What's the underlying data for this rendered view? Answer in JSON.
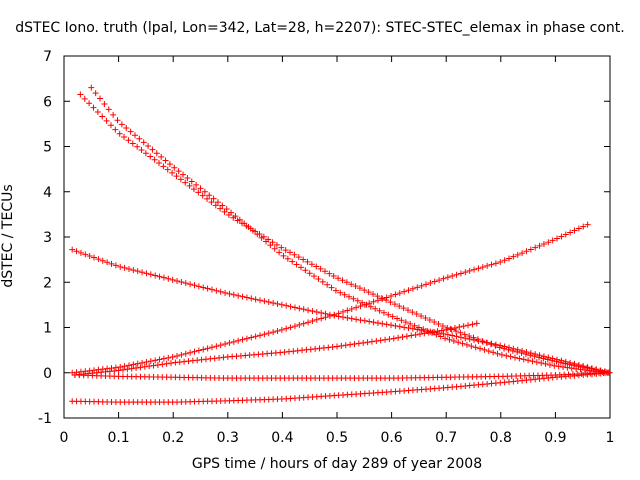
{
  "chart_data": {
    "type": "scatter",
    "title": "dSTEC Iono. truth (lpal, Lon=342, Lat=28, h=2207): STEC-STEC_elemax in phase cont.",
    "xlabel": "GPS time / hours of day 289 of year 2008",
    "ylabel": "dSTEC  / TECUs",
    "xlim": [
      0,
      1
    ],
    "ylim": [
      -1,
      7
    ],
    "xticks": [
      "0",
      "0.1",
      "0.2",
      "0.3",
      "0.4",
      "0.5",
      "0.6",
      "0.7",
      "0.8",
      "0.9",
      "1"
    ],
    "yticks": [
      "-1",
      "0",
      "1",
      "2",
      "3",
      "4",
      "5",
      "6",
      "7"
    ],
    "grid": false,
    "legend": "none",
    "marker": "+",
    "color": "#ff0000",
    "series": [
      {
        "x": [
          0.03,
          0.1,
          0.2,
          0.3,
          0.4,
          0.5,
          0.6,
          0.7,
          0.8,
          0.9,
          0.96,
          1.0
        ],
        "y": [
          6.15,
          5.3,
          4.4,
          3.5,
          2.75,
          2.1,
          1.55,
          1.0,
          0.55,
          0.25,
          0.1,
          0.0
        ]
      },
      {
        "x": [
          0.05,
          0.1,
          0.2,
          0.3,
          0.4,
          0.5,
          0.6,
          0.7,
          0.8,
          0.9,
          0.96,
          1.0
        ],
        "y": [
          6.3,
          5.55,
          4.55,
          3.6,
          2.6,
          1.8,
          1.25,
          0.75,
          0.4,
          0.15,
          0.05,
          0.0
        ]
      },
      {
        "x": [
          0.015,
          0.1,
          0.2,
          0.3,
          0.4,
          0.5,
          0.6,
          0.7,
          0.8,
          0.9,
          1.0
        ],
        "y": [
          2.72,
          2.35,
          2.05,
          1.75,
          1.5,
          1.25,
          1.05,
          0.85,
          0.6,
          0.3,
          0.0
        ]
      },
      {
        "x": [
          0.015,
          0.1,
          0.2,
          0.3,
          0.4,
          0.5,
          0.6,
          0.7,
          0.8,
          0.9,
          0.96
        ],
        "y": [
          0.0,
          0.12,
          0.35,
          0.65,
          0.95,
          1.3,
          1.7,
          2.1,
          2.45,
          2.95,
          3.28
        ]
      },
      {
        "x": [
          0.02,
          0.1,
          0.2,
          0.3,
          0.4,
          0.5,
          0.6,
          0.7,
          0.76
        ],
        "y": [
          -0.05,
          0.05,
          0.22,
          0.35,
          0.45,
          0.58,
          0.75,
          0.95,
          1.1
        ]
      },
      {
        "x": [
          0.02,
          0.1,
          0.2,
          0.3,
          0.4,
          0.5,
          0.6,
          0.7,
          0.8,
          0.9,
          1.0
        ],
        "y": [
          -0.05,
          -0.08,
          -0.1,
          -0.12,
          -0.12,
          -0.12,
          -0.12,
          -0.1,
          -0.08,
          -0.05,
          0.0
        ]
      },
      {
        "x": [
          0.015,
          0.1,
          0.2,
          0.3,
          0.4,
          0.5,
          0.6,
          0.7,
          0.8,
          0.9,
          1.0
        ],
        "y": [
          -0.63,
          -0.65,
          -0.65,
          -0.62,
          -0.58,
          -0.5,
          -0.42,
          -0.33,
          -0.22,
          -0.1,
          0.0
        ]
      }
    ]
  }
}
